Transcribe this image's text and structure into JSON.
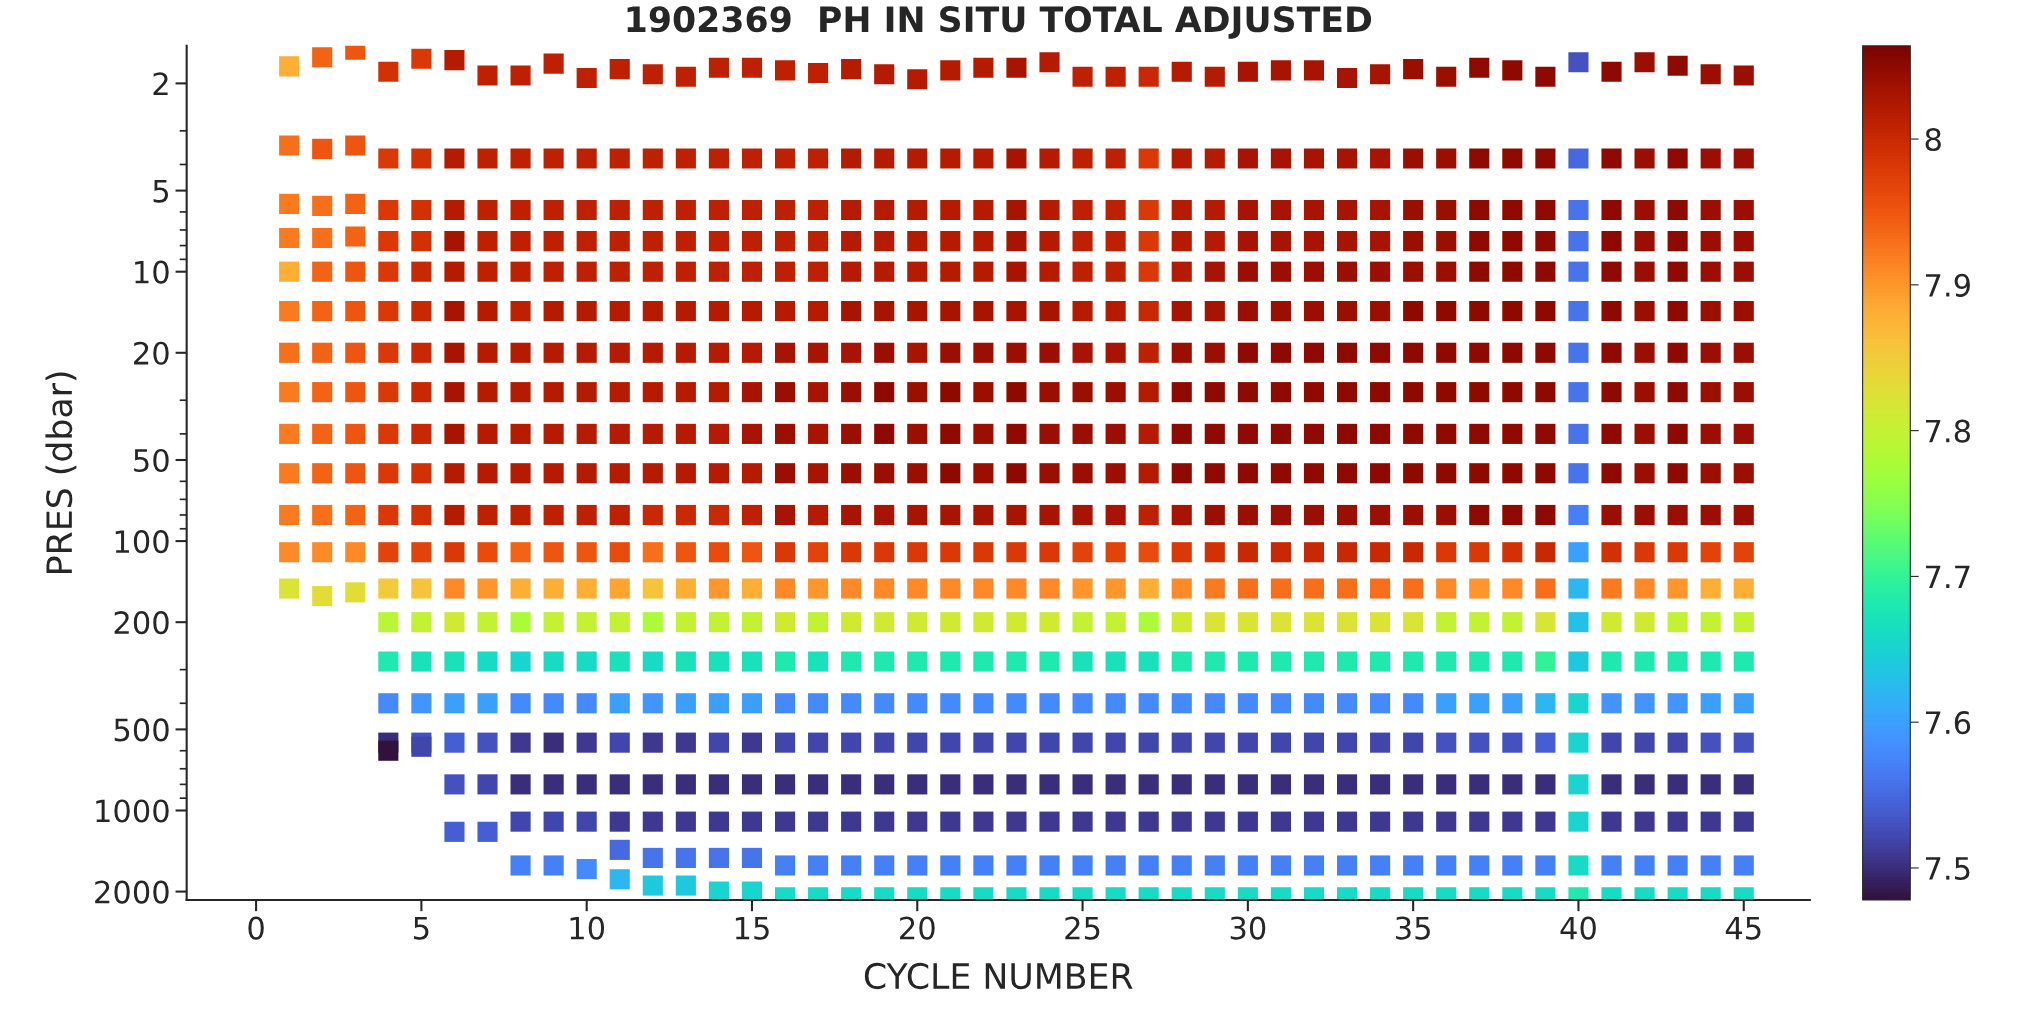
{
  "chart_data": {
    "type": "scatter",
    "title": "1902369  PH IN SITU TOTAL ADJUSTED",
    "xlabel": "CYCLE NUMBER",
    "ylabel": "PRES (dbar)",
    "marker": "square",
    "grid": false,
    "legend": false,
    "xlim": [
      -2.1,
      47
    ],
    "xticks": [
      0,
      5,
      10,
      15,
      20,
      25,
      30,
      35,
      40,
      45
    ],
    "ylim": [
      2150,
      1.45
    ],
    "yticks": [
      2,
      5,
      10,
      20,
      50,
      100,
      200,
      500,
      1000,
      2000
    ],
    "log": "y",
    "clim": [
      7.478,
      8.064
    ],
    "cticks": [
      {
        "value": 7.5,
        "label": "7.5"
      },
      {
        "value": 7.6,
        "label": "7.6"
      },
      {
        "value": 7.7,
        "label": "7.7"
      },
      {
        "value": 7.8,
        "label": "7.8"
      },
      {
        "value": 7.9,
        "label": "7.9"
      },
      {
        "value": 8,
        "label": "8"
      }
    ],
    "x": [
      1,
      1,
      1,
      1,
      1,
      1,
      1,
      1,
      1,
      1,
      1,
      1,
      1,
      2,
      2,
      2,
      2,
      2,
      2,
      2,
      2,
      2,
      2,
      2,
      2,
      2,
      3,
      3,
      3,
      3,
      3,
      3,
      3,
      3,
      3,
      3,
      3,
      3,
      3,
      4,
      4,
      4,
      4,
      4,
      4,
      4,
      4,
      4,
      4,
      4,
      4,
      4,
      4,
      4,
      4,
      4,
      4,
      5,
      5,
      5,
      5,
      5,
      5,
      5,
      5,
      5,
      5,
      5,
      5,
      5,
      5,
      5,
      5,
      5,
      5,
      6,
      6,
      6,
      6,
      6,
      6,
      6,
      6,
      6,
      6,
      6,
      6,
      6,
      6,
      6,
      6,
      6,
      6,
      6,
      7,
      7,
      7,
      7,
      7,
      7,
      7,
      7,
      7,
      7,
      7,
      7,
      7,
      7,
      7,
      7,
      7,
      7,
      7,
      8,
      8,
      8,
      8,
      8,
      8,
      8,
      8,
      8,
      8,
      8,
      8,
      8,
      8,
      8,
      8,
      8,
      8,
      8,
      8,
      9,
      9,
      9,
      9,
      9,
      9,
      9,
      9,
      9,
      9,
      9,
      9,
      9,
      9,
      9,
      9,
      9,
      9,
      9,
      9,
      10,
      10,
      10,
      10,
      10,
      10,
      10,
      10,
      10,
      10,
      10,
      10,
      10,
      10,
      10,
      10,
      10,
      10,
      10,
      10,
      11,
      11,
      11,
      11,
      11,
      11,
      11,
      11,
      11,
      11,
      11,
      11,
      11,
      11,
      11,
      11,
      11,
      11,
      11,
      11,
      11,
      12,
      12,
      12,
      12,
      12,
      12,
      12,
      12,
      12,
      12,
      12,
      12,
      12,
      12,
      12,
      12,
      12,
      12,
      12,
      12,
      12,
      13,
      13,
      13,
      13,
      13,
      13,
      13,
      13,
      13,
      13,
      13,
      13,
      13,
      13,
      13,
      13,
      13,
      13,
      13,
      13,
      13,
      14,
      14,
      14,
      14,
      14,
      14,
      14,
      14,
      14,
      14,
      14,
      14,
      14,
      14,
      14,
      14,
      14,
      14,
      14,
      14,
      14,
      15,
      15,
      15,
      15,
      15,
      15,
      15,
      15,
      15,
      15,
      15,
      15,
      15,
      15,
      15,
      15,
      15,
      15,
      15,
      15,
      15,
      16,
      16,
      16,
      16,
      16,
      16,
      16,
      16,
      16,
      16,
      16,
      16,
      16,
      16,
      16,
      16,
      16,
      16,
      16,
      16,
      16,
      17,
      17,
      17,
      17,
      17,
      17,
      17,
      17,
      17,
      17,
      17,
      17,
      17,
      17,
      17,
      17,
      17,
      17,
      17,
      17,
      17,
      18,
      18,
      18,
      18,
      18,
      18,
      18,
      18,
      18,
      18,
      18,
      18,
      18,
      18,
      18,
      18,
      18,
      18,
      18,
      18,
      18,
      19,
      19,
      19,
      19,
      19,
      19,
      19,
      19,
      19,
      19,
      19,
      19,
      19,
      19,
      19,
      19,
      19,
      19,
      19,
      19,
      19,
      20,
      20,
      20,
      20,
      20,
      20,
      20,
      20,
      20,
      20,
      20,
      20,
      20,
      20,
      20,
      20,
      20,
      20,
      20,
      20,
      20,
      21,
      21,
      21,
      21,
      21,
      21,
      21,
      21,
      21,
      21,
      21,
      21,
      21,
      21,
      21,
      21,
      21,
      21,
      21,
      21,
      21,
      22,
      22,
      22,
      22,
      22,
      22,
      22,
      22,
      22,
      22,
      22,
      22,
      22,
      22,
      22,
      22,
      22,
      22,
      22,
      22,
      22,
      23,
      23,
      23,
      23,
      23,
      23,
      23,
      23,
      23,
      23,
      23,
      23,
      23,
      23,
      23,
      23,
      23,
      23,
      23,
      23,
      23,
      24,
      24,
      24,
      24,
      24,
      24,
      24,
      24,
      24,
      24,
      24,
      24,
      24,
      24,
      24,
      24,
      24,
      24,
      24,
      24,
      24,
      25,
      25,
      25,
      25,
      25,
      25,
      25,
      25,
      25,
      25,
      25,
      25,
      25,
      25,
      25,
      25,
      25,
      25,
      25,
      25,
      25,
      26,
      26,
      26,
      26,
      26,
      26,
      26,
      26,
      26,
      26,
      26,
      26,
      26,
      26,
      26,
      26,
      26,
      26,
      26,
      26,
      26,
      27,
      27,
      27,
      27,
      27,
      27,
      27,
      27,
      27,
      27,
      27,
      27,
      27,
      27,
      27,
      27,
      27,
      27,
      27,
      27,
      27,
      28,
      28,
      28,
      28,
      28,
      28,
      28,
      28,
      28,
      28,
      28,
      28,
      28,
      28,
      28,
      28,
      28,
      28,
      28,
      28,
      28,
      29,
      29,
      29,
      29,
      29,
      29,
      29,
      29,
      29,
      29,
      29,
      29,
      29,
      29,
      29,
      29,
      29,
      29,
      29,
      29,
      29,
      30,
      30,
      30,
      30,
      30,
      30,
      30,
      30,
      30,
      30,
      30,
      30,
      30,
      30,
      30,
      30,
      30,
      30,
      30,
      30,
      30,
      31,
      31,
      31,
      31,
      31,
      31,
      31,
      31,
      31,
      31,
      31,
      31,
      31,
      31,
      31,
      31,
      31,
      31,
      31,
      31,
      31,
      32,
      32,
      32,
      32,
      32,
      32,
      32,
      32,
      32,
      32,
      32,
      32,
      32,
      32,
      32,
      32,
      32,
      32,
      32,
      32,
      32,
      33,
      33,
      33,
      33,
      33,
      33,
      33,
      33,
      33,
      33,
      33,
      33,
      33,
      33,
      33,
      33,
      33,
      33,
      33,
      33,
      33,
      34,
      34,
      34,
      34,
      34,
      34,
      34,
      34,
      34,
      34,
      34,
      34,
      34,
      34,
      34,
      34,
      34,
      34,
      34,
      34,
      34,
      35,
      35,
      35,
      35,
      35,
      35,
      35,
      35,
      35,
      35,
      35,
      35,
      35,
      35,
      35,
      35,
      35,
      35,
      35,
      35,
      35,
      36,
      36,
      36,
      36,
      36,
      36,
      36,
      36,
      36,
      36,
      36,
      36,
      36,
      36,
      36,
      36,
      36,
      36,
      36,
      36,
      36,
      37,
      37,
      37,
      37,
      37,
      37,
      37,
      37,
      37,
      37,
      37,
      37,
      37,
      37,
      37,
      37,
      37,
      37,
      37,
      37,
      37,
      38,
      38,
      38,
      38,
      38,
      38,
      38,
      38,
      38,
      38,
      38,
      38,
      38,
      38,
      38,
      38,
      38,
      38,
      38,
      38,
      38,
      39,
      39,
      39,
      39,
      39,
      39,
      39,
      39,
      39,
      39,
      39,
      39,
      39,
      39,
      39,
      39,
      39,
      39,
      39,
      39,
      39,
      40,
      40,
      40,
      40,
      40,
      40,
      40,
      40,
      40,
      40,
      40,
      40,
      40,
      40,
      40,
      40,
      40,
      40,
      40,
      40,
      40,
      41,
      41,
      41,
      41,
      41,
      41,
      41,
      41,
      41,
      41,
      41,
      41,
      41,
      41,
      41,
      41,
      41,
      41,
      41,
      41,
      41,
      42,
      42,
      42,
      42,
      42,
      42,
      42,
      42,
      42,
      42,
      42,
      42,
      42,
      42,
      42,
      42,
      42,
      42,
      42,
      42,
      42,
      43,
      43,
      43,
      43,
      43,
      43,
      43,
      43,
      43,
      43,
      43,
      43,
      43,
      43,
      43,
      43,
      43,
      43,
      43,
      43,
      43,
      44,
      44,
      44,
      44,
      44,
      44,
      44,
      44,
      44,
      44,
      44,
      44,
      44,
      44,
      44,
      44,
      44,
      44,
      44,
      44,
      44,
      45,
      45,
      45,
      45,
      45,
      45,
      45,
      45,
      45,
      45,
      45,
      45,
      45,
      45,
      45,
      45,
      45,
      45,
      45,
      45,
      45
    ],
    "values": [
      1.73,
      3.4,
      5.6,
      7.5,
      10,
      14,
      20,
      28,
      40,
      56,
      80,
      110,
      150,
      1.6,
      3.5,
      5.7,
      7.5,
      10,
      14,
      20,
      28,
      40,
      56,
      80,
      110,
      160,
      1.5,
      3.4,
      5.6,
      7.4,
      10,
      14,
      20,
      28,
      40,
      56,
      80,
      110,
      155,
      1.81,
      3.8,
      5.9,
      7.7,
      10,
      14,
      20,
      28,
      40,
      56,
      80,
      110,
      150,
      200,
      280,
      400,
      560,
      600,
      1.62,
      3.8,
      5.9,
      7.7,
      10,
      14,
      20,
      28,
      40,
      56,
      80,
      110,
      150,
      200,
      280,
      400,
      560,
      580,
      1.64,
      3.8,
      5.9,
      7.7,
      10,
      14,
      20,
      28,
      40,
      56,
      80,
      110,
      150,
      200,
      280,
      400,
      560,
      800,
      1200,
      1.87,
      3.8,
      5.9,
      7.7,
      10,
      14,
      20,
      28,
      40,
      56,
      80,
      110,
      150,
      200,
      280,
      400,
      560,
      800,
      1200,
      1.87,
      3.8,
      5.9,
      7.7,
      10,
      14,
      20,
      28,
      40,
      56,
      80,
      110,
      150,
      200,
      280,
      400,
      560,
      800,
      1100,
      1600,
      1.69,
      3.8,
      5.9,
      7.7,
      10,
      14,
      20,
      28,
      40,
      56,
      80,
      110,
      150,
      200,
      280,
      400,
      560,
      800,
      1100,
      1600,
      1.91,
      3.8,
      5.9,
      7.7,
      10,
      14,
      20,
      28,
      40,
      56,
      80,
      110,
      150,
      200,
      280,
      400,
      560,
      800,
      1100,
      1650,
      1.77,
      3.8,
      5.9,
      7.7,
      10,
      14,
      20,
      28,
      40,
      56,
      80,
      110,
      150,
      200,
      280,
      400,
      560,
      800,
      1100,
      1400,
      1800,
      1.85,
      3.8,
      5.9,
      7.7,
      10,
      14,
      20,
      28,
      40,
      56,
      80,
      110,
      150,
      200,
      280,
      400,
      560,
      800,
      1100,
      1500,
      1900,
      1.89,
      3.8,
      5.9,
      7.7,
      10,
      14,
      20,
      28,
      40,
      56,
      80,
      110,
      150,
      200,
      280,
      400,
      560,
      800,
      1100,
      1500,
      1900,
      1.75,
      3.8,
      5.9,
      7.7,
      10,
      14,
      20,
      28,
      40,
      56,
      80,
      110,
      150,
      200,
      280,
      400,
      560,
      800,
      1100,
      1500,
      2000,
      1.75,
      3.8,
      5.9,
      7.7,
      10,
      14,
      20,
      28,
      40,
      56,
      80,
      110,
      150,
      200,
      280,
      400,
      560,
      800,
      1100,
      1500,
      2000,
      1.79,
      3.8,
      5.9,
      7.7,
      10,
      14,
      20,
      28,
      40,
      56,
      80,
      110,
      150,
      200,
      280,
      400,
      560,
      800,
      1100,
      1600,
      2100,
      1.83,
      3.8,
      5.9,
      7.7,
      10,
      14,
      20,
      28,
      40,
      56,
      80,
      110,
      150,
      200,
      280,
      400,
      560,
      800,
      1100,
      1600,
      2100,
      1.77,
      3.8,
      5.9,
      7.7,
      10,
      14,
      20,
      28,
      40,
      56,
      80,
      110,
      150,
      200,
      280,
      400,
      560,
      800,
      1100,
      1600,
      2100,
      1.85,
      3.8,
      5.9,
      7.7,
      10,
      14,
      20,
      28,
      40,
      56,
      80,
      110,
      150,
      200,
      280,
      400,
      560,
      800,
      1100,
      1600,
      2100,
      1.93,
      3.8,
      5.9,
      7.7,
      10,
      14,
      20,
      28,
      40,
      56,
      80,
      110,
      150,
      200,
      280,
      400,
      560,
      800,
      1100,
      1600,
      2100,
      1.79,
      3.8,
      5.9,
      7.7,
      10,
      14,
      20,
      28,
      40,
      56,
      80,
      110,
      150,
      200,
      280,
      400,
      560,
      800,
      1100,
      1600,
      2100,
      1.75,
      3.8,
      5.9,
      7.7,
      10,
      14,
      20,
      28,
      40,
      56,
      80,
      110,
      150,
      200,
      280,
      400,
      560,
      800,
      1100,
      1600,
      2100,
      1.75,
      3.8,
      5.9,
      7.7,
      10,
      14,
      20,
      28,
      40,
      56,
      80,
      110,
      150,
      200,
      280,
      400,
      560,
      800,
      1100,
      1600,
      2100,
      1.67,
      3.8,
      5.9,
      7.7,
      10,
      14,
      20,
      28,
      40,
      56,
      80,
      110,
      150,
      200,
      280,
      400,
      560,
      800,
      1100,
      1600,
      2100,
      1.89,
      3.8,
      5.9,
      7.7,
      10,
      14,
      20,
      28,
      40,
      56,
      80,
      110,
      150,
      200,
      280,
      400,
      560,
      800,
      1100,
      1600,
      2100,
      1.89,
      3.8,
      5.9,
      7.7,
      10,
      14,
      20,
      28,
      40,
      56,
      80,
      110,
      150,
      200,
      280,
      400,
      560,
      800,
      1100,
      1600,
      2100,
      1.89,
      3.8,
      5.9,
      7.7,
      10,
      14,
      20,
      28,
      40,
      56,
      80,
      110,
      150,
      200,
      280,
      400,
      560,
      800,
      1100,
      1600,
      2100,
      1.81,
      3.8,
      5.9,
      7.7,
      10,
      14,
      20,
      28,
      40,
      56,
      80,
      110,
      150,
      200,
      280,
      400,
      560,
      800,
      1100,
      1600,
      2100,
      1.89,
      3.8,
      5.9,
      7.7,
      10,
      14,
      20,
      28,
      40,
      56,
      80,
      110,
      150,
      200,
      280,
      400,
      560,
      800,
      1100,
      1600,
      2100,
      1.81,
      3.8,
      5.9,
      7.7,
      10,
      14,
      20,
      28,
      40,
      56,
      80,
      110,
      150,
      200,
      280,
      400,
      560,
      800,
      1100,
      1600,
      2100,
      1.79,
      3.8,
      5.9,
      7.7,
      10,
      14,
      20,
      28,
      40,
      56,
      80,
      110,
      150,
      200,
      280,
      400,
      560,
      800,
      1100,
      1600,
      2100,
      1.79,
      3.8,
      5.9,
      7.7,
      10,
      14,
      20,
      28,
      40,
      56,
      80,
      110,
      150,
      200,
      280,
      400,
      560,
      800,
      1100,
      1600,
      2100,
      1.91,
      3.8,
      5.9,
      7.7,
      10,
      14,
      20,
      28,
      40,
      56,
      80,
      110,
      150,
      200,
      280,
      400,
      560,
      800,
      1100,
      1600,
      2100,
      1.85,
      3.8,
      5.9,
      7.7,
      10,
      14,
      20,
      28,
      40,
      56,
      80,
      110,
      150,
      200,
      280,
      400,
      560,
      800,
      1100,
      1600,
      2100,
      1.77,
      3.8,
      5.9,
      7.7,
      10,
      14,
      20,
      28,
      40,
      56,
      80,
      110,
      150,
      200,
      280,
      400,
      560,
      800,
      1100,
      1600,
      2100,
      1.89,
      3.8,
      5.9,
      7.7,
      10,
      14,
      20,
      28,
      40,
      56,
      80,
      110,
      150,
      200,
      280,
      400,
      560,
      800,
      1100,
      1600,
      2100,
      1.75,
      3.8,
      5.9,
      7.7,
      10,
      14,
      20,
      28,
      40,
      56,
      80,
      110,
      150,
      200,
      280,
      400,
      560,
      800,
      1100,
      1600,
      2100,
      1.79,
      3.8,
      5.9,
      7.7,
      10,
      14,
      20,
      28,
      40,
      56,
      80,
      110,
      150,
      200,
      280,
      400,
      560,
      800,
      1100,
      1600,
      2100,
      1.89,
      3.8,
      5.9,
      7.7,
      10,
      14,
      20,
      28,
      40,
      56,
      80,
      110,
      150,
      200,
      280,
      400,
      560,
      800,
      1100,
      1600,
      2100,
      1.67,
      3.8,
      5.9,
      7.7,
      10,
      14,
      20,
      28,
      40,
      56,
      80,
      110,
      150,
      200,
      280,
      400,
      560,
      800,
      1100,
      1600,
      2100,
      1.81,
      3.8,
      5.9,
      7.7,
      10,
      14,
      20,
      28,
      40,
      56,
      80,
      110,
      150,
      200,
      280,
      400,
      560,
      800,
      1100,
      1600,
      2100,
      1.67,
      3.8,
      5.9,
      7.7,
      10,
      14,
      20,
      28,
      40,
      56,
      80,
      110,
      150,
      200,
      280,
      400,
      560,
      800,
      1100,
      1600,
      2100,
      1.72,
      3.8,
      5.9,
      7.7,
      10,
      14,
      20,
      28,
      40,
      56,
      80,
      110,
      150,
      200,
      280,
      400,
      560,
      800,
      1100,
      1600,
      2100,
      1.85,
      3.8,
      5.9,
      7.7,
      10,
      14,
      20,
      28,
      40,
      56,
      80,
      110,
      150,
      200,
      280,
      400,
      560,
      800,
      1100,
      1600,
      2100,
      1.87,
      3.8,
      5.9,
      7.7,
      10,
      14,
      20,
      28,
      40,
      56,
      80,
      110,
      150,
      200,
      280,
      400,
      560,
      800,
      1100,
      1600,
      2100
    ],
    "cvalues": [
      7.88,
      7.93,
      7.92,
      7.92,
      7.88,
      7.92,
      7.93,
      7.92,
      7.92,
      7.92,
      7.92,
      7.91,
      7.82,
      7.94,
      7.95,
      7.93,
      7.93,
      7.94,
      7.94,
      7.94,
      7.94,
      7.94,
      7.94,
      7.93,
      7.91,
      7.83,
      7.95,
      7.95,
      7.94,
      7.94,
      7.95,
      7.95,
      7.95,
      7.95,
      7.95,
      7.95,
      7.94,
      7.91,
      7.83,
      7.99,
      7.98,
      7.98,
      7.98,
      7.98,
      7.98,
      7.98,
      7.98,
      7.98,
      7.98,
      7.98,
      7.97,
      7.85,
      7.79,
      7.68,
      7.58,
      7.5,
      7.48,
      7.98,
      7.99,
      7.99,
      7.99,
      8.0,
      8.0,
      8.0,
      8.0,
      8.0,
      7.99,
      7.99,
      7.97,
      7.86,
      7.8,
      7.67,
      7.59,
      7.53,
      7.52,
      8.02,
      8.02,
      8.02,
      8.03,
      8.02,
      8.03,
      8.03,
      8.03,
      8.03,
      8.02,
      8.02,
      7.98,
      7.91,
      7.81,
      7.67,
      7.6,
      7.54,
      7.53,
      7.54,
      8.01,
      8.01,
      8.01,
      8.01,
      8.01,
      8.02,
      8.02,
      8.02,
      8.02,
      8.02,
      8.01,
      7.96,
      7.9,
      7.8,
      7.66,
      7.6,
      7.53,
      7.52,
      7.54,
      8.01,
      8.01,
      8.01,
      8.01,
      8.01,
      8.01,
      8.02,
      8.02,
      8.02,
      8.02,
      8.01,
      7.94,
      7.88,
      7.78,
      7.65,
      7.58,
      7.51,
      7.5,
      7.52,
      7.57,
      8.01,
      8.01,
      8.01,
      8.01,
      8.01,
      8.02,
      8.02,
      8.02,
      8.02,
      8.02,
      8.01,
      7.95,
      7.88,
      7.8,
      7.66,
      7.58,
      7.5,
      7.5,
      7.52,
      7.57,
      8.01,
      8.01,
      8.01,
      8.01,
      8.01,
      8.02,
      8.02,
      8.02,
      8.02,
      8.02,
      8.01,
      7.95,
      7.88,
      7.8,
      7.66,
      7.58,
      7.51,
      7.5,
      7.52,
      7.58,
      8.01,
      8.01,
      8.01,
      8.01,
      8.01,
      8.02,
      8.02,
      8.02,
      8.02,
      8.02,
      8.01,
      7.96,
      7.89,
      7.8,
      7.67,
      7.6,
      7.52,
      7.5,
      7.51,
      7.55,
      7.62,
      8.01,
      8.01,
      8.01,
      8.01,
      8.01,
      8.02,
      8.02,
      8.02,
      8.02,
      8.02,
      8.0,
      7.93,
      7.86,
      7.78,
      7.66,
      7.59,
      7.51,
      7.5,
      7.51,
      7.56,
      7.64,
      8.01,
      8.01,
      8.01,
      8.01,
      8.01,
      8.02,
      8.02,
      8.02,
      8.02,
      8.02,
      8.0,
      7.95,
      7.88,
      7.8,
      7.67,
      7.6,
      7.51,
      7.5,
      7.51,
      7.56,
      7.64,
      8.01,
      8.01,
      8.01,
      8.01,
      8.01,
      8.02,
      8.02,
      8.02,
      8.02,
      8.02,
      8.0,
      7.96,
      7.9,
      7.8,
      7.67,
      7.6,
      7.52,
      7.5,
      7.51,
      7.56,
      7.65,
      8.01,
      8.01,
      8.01,
      8.01,
      8.01,
      8.02,
      8.02,
      8.03,
      8.03,
      8.02,
      8.01,
      7.95,
      7.88,
      7.8,
      7.67,
      7.6,
      7.51,
      7.5,
      7.51,
      7.56,
      7.65,
      8.01,
      8.01,
      8.01,
      8.01,
      8.01,
      8.02,
      8.03,
      8.04,
      8.04,
      8.04,
      8.03,
      7.98,
      7.91,
      7.81,
      7.68,
      7.58,
      7.52,
      7.5,
      7.51,
      7.57,
      7.66,
      8.01,
      8.01,
      8.01,
      8.01,
      8.01,
      8.02,
      8.03,
      8.03,
      8.03,
      8.03,
      8.02,
      7.97,
      7.9,
      7.8,
      7.67,
      7.58,
      7.52,
      7.5,
      7.51,
      7.57,
      7.66,
      8.02,
      8.02,
      8.02,
      8.02,
      8.02,
      8.03,
      8.03,
      8.04,
      8.04,
      8.04,
      8.03,
      7.98,
      7.91,
      7.81,
      7.68,
      7.58,
      7.52,
      7.5,
      7.51,
      7.57,
      7.66,
      8.02,
      8.02,
      8.02,
      8.02,
      8.02,
      8.03,
      8.04,
      8.05,
      8.05,
      8.04,
      8.03,
      7.98,
      7.91,
      7.81,
      7.68,
      7.58,
      7.52,
      7.5,
      7.51,
      7.57,
      7.66,
      8.02,
      8.02,
      8.02,
      8.02,
      8.02,
      8.03,
      8.03,
      8.04,
      8.04,
      8.04,
      8.03,
      7.98,
      7.91,
      7.81,
      7.68,
      7.58,
      7.52,
      7.5,
      7.51,
      7.57,
      7.66,
      8.02,
      8.02,
      8.02,
      8.02,
      8.02,
      8.03,
      8.04,
      8.05,
      8.05,
      8.05,
      8.03,
      7.98,
      7.91,
      7.81,
      7.68,
      7.58,
      7.52,
      7.5,
      7.51,
      7.57,
      7.66,
      8.02,
      8.02,
      8.02,
      8.02,
      8.02,
      8.03,
      8.04,
      8.04,
      8.04,
      8.04,
      8.03,
      7.98,
      7.91,
      7.81,
      7.68,
      7.58,
      7.52,
      7.5,
      7.51,
      7.57,
      7.66,
      8.03,
      8.03,
      8.03,
      8.03,
      8.03,
      8.03,
      8.04,
      8.05,
      8.05,
      8.05,
      8.03,
      7.98,
      7.91,
      7.81,
      7.68,
      7.58,
      7.52,
      7.5,
      7.51,
      7.57,
      7.66,
      8.02,
      8.02,
      8.02,
      8.02,
      8.02,
      8.03,
      8.04,
      8.04,
      8.04,
      8.04,
      8.03,
      7.98,
      7.91,
      7.81,
      7.68,
      7.58,
      7.52,
      7.5,
      7.51,
      7.57,
      7.66,
      8.01,
      8.01,
      8.01,
      8.01,
      8.01,
      8.02,
      8.03,
      8.04,
      8.04,
      8.04,
      8.03,
      7.97,
      7.9,
      7.8,
      7.67,
      7.58,
      7.52,
      7.5,
      7.51,
      7.57,
      7.66,
      8.01,
      8.01,
      8.01,
      8.01,
      8.01,
      8.02,
      8.03,
      8.04,
      8.04,
      8.04,
      8.03,
      7.97,
      7.9,
      7.8,
      7.67,
      7.58,
      7.52,
      7.5,
      7.51,
      7.57,
      7.66,
      8.0,
      7.98,
      7.98,
      7.98,
      7.98,
      8.0,
      8.01,
      8.02,
      8.02,
      8.02,
      8.01,
      7.96,
      7.88,
      7.78,
      7.67,
      7.58,
      7.52,
      7.5,
      7.51,
      7.57,
      7.66,
      8.02,
      8.02,
      8.02,
      8.02,
      8.02,
      8.03,
      8.04,
      8.05,
      8.05,
      8.05,
      8.03,
      7.98,
      7.91,
      7.81,
      7.68,
      7.58,
      7.52,
      7.5,
      7.51,
      7.57,
      7.66,
      8.02,
      8.02,
      8.02,
      8.02,
      8.03,
      8.03,
      8.04,
      8.05,
      8.05,
      8.05,
      8.04,
      7.99,
      7.92,
      7.82,
      7.68,
      7.58,
      7.52,
      7.5,
      7.51,
      7.57,
      7.66,
      8.03,
      8.03,
      8.03,
      8.03,
      8.04,
      8.04,
      8.05,
      8.05,
      8.05,
      8.05,
      8.04,
      8.0,
      7.93,
      7.82,
      7.68,
      7.58,
      7.52,
      7.5,
      7.51,
      7.57,
      7.66,
      8.03,
      8.03,
      8.03,
      8.03,
      8.04,
      8.04,
      8.05,
      8.05,
      8.05,
      8.05,
      8.04,
      8.0,
      7.93,
      7.82,
      7.68,
      7.58,
      7.52,
      7.5,
      7.51,
      7.57,
      7.66,
      8.03,
      8.03,
      8.03,
      8.03,
      8.04,
      8.04,
      8.05,
      8.05,
      8.05,
      8.05,
      8.04,
      8.0,
      7.93,
      7.82,
      7.68,
      7.58,
      7.52,
      7.5,
      7.51,
      7.57,
      7.66,
      8.03,
      8.03,
      8.03,
      8.03,
      8.04,
      8.04,
      8.05,
      8.05,
      8.05,
      8.05,
      8.04,
      8.0,
      7.93,
      7.82,
      7.68,
      7.58,
      7.52,
      7.5,
      7.51,
      7.57,
      7.66,
      8.03,
      8.03,
      8.03,
      8.03,
      8.04,
      8.04,
      8.05,
      8.05,
      8.05,
      8.05,
      8.04,
      8.0,
      7.93,
      7.82,
      7.68,
      7.58,
      7.52,
      7.5,
      7.51,
      7.57,
      7.66,
      8.04,
      8.04,
      8.04,
      8.04,
      8.04,
      8.05,
      8.05,
      8.05,
      8.05,
      8.05,
      8.04,
      8.0,
      7.93,
      7.82,
      7.68,
      7.58,
      7.52,
      7.5,
      7.51,
      7.57,
      7.66,
      8.04,
      8.04,
      8.04,
      8.04,
      8.04,
      8.05,
      8.05,
      8.05,
      8.05,
      8.05,
      8.04,
      7.98,
      7.91,
      7.8,
      7.68,
      7.6,
      7.53,
      7.5,
      7.51,
      7.57,
      7.66,
      8.05,
      8.05,
      8.05,
      8.05,
      8.05,
      8.05,
      8.05,
      8.05,
      8.05,
      8.05,
      8.05,
      7.98,
      7.9,
      7.8,
      7.68,
      7.6,
      7.53,
      7.5,
      7.51,
      7.57,
      7.66,
      8.05,
      8.05,
      8.05,
      8.05,
      8.05,
      8.05,
      8.05,
      8.05,
      8.05,
      8.05,
      8.05,
      7.99,
      7.91,
      7.8,
      7.68,
      7.6,
      7.53,
      7.5,
      7.51,
      7.57,
      7.66,
      8.05,
      8.05,
      8.05,
      8.05,
      8.05,
      8.05,
      8.05,
      8.05,
      8.05,
      8.05,
      8.05,
      8.0,
      7.93,
      7.82,
      7.7,
      7.62,
      7.54,
      7.5,
      7.51,
      7.57,
      7.66,
      7.53,
      7.55,
      7.56,
      7.56,
      7.56,
      7.56,
      7.56,
      7.56,
      7.56,
      7.56,
      7.57,
      7.6,
      7.62,
      7.63,
      7.64,
      7.65,
      7.65,
      7.65,
      7.65,
      7.66,
      7.68,
      8.05,
      8.05,
      8.05,
      8.05,
      8.05,
      8.05,
      8.05,
      8.05,
      8.05,
      8.05,
      8.04,
      7.99,
      7.92,
      7.81,
      7.68,
      7.59,
      7.52,
      7.5,
      7.51,
      7.57,
      7.66,
      8.04,
      8.04,
      8.04,
      8.04,
      8.04,
      8.04,
      8.04,
      8.04,
      8.04,
      8.04,
      8.04,
      7.98,
      7.91,
      7.81,
      7.68,
      7.59,
      7.52,
      7.5,
      7.51,
      7.57,
      7.66,
      8.05,
      8.05,
      8.05,
      8.05,
      8.05,
      8.05,
      8.05,
      8.05,
      8.05,
      8.05,
      8.04,
      7.98,
      7.9,
      7.8,
      7.68,
      7.59,
      7.52,
      7.5,
      7.51,
      7.57,
      7.66,
      8.04,
      8.04,
      8.04,
      8.04,
      8.04,
      8.04,
      8.04,
      8.04,
      8.04,
      8.04,
      8.04,
      7.97,
      7.88,
      7.8,
      7.68,
      7.6,
      7.53,
      7.5,
      7.51,
      7.57,
      7.66,
      8.04,
      8.04,
      8.04,
      8.04,
      8.04,
      8.04,
      8.04,
      8.04,
      8.04,
      8.04,
      8.04,
      7.97,
      7.88,
      7.8,
      7.68,
      7.6,
      7.53,
      7.5,
      7.51,
      7.57,
      7.66
    ]
  }
}
